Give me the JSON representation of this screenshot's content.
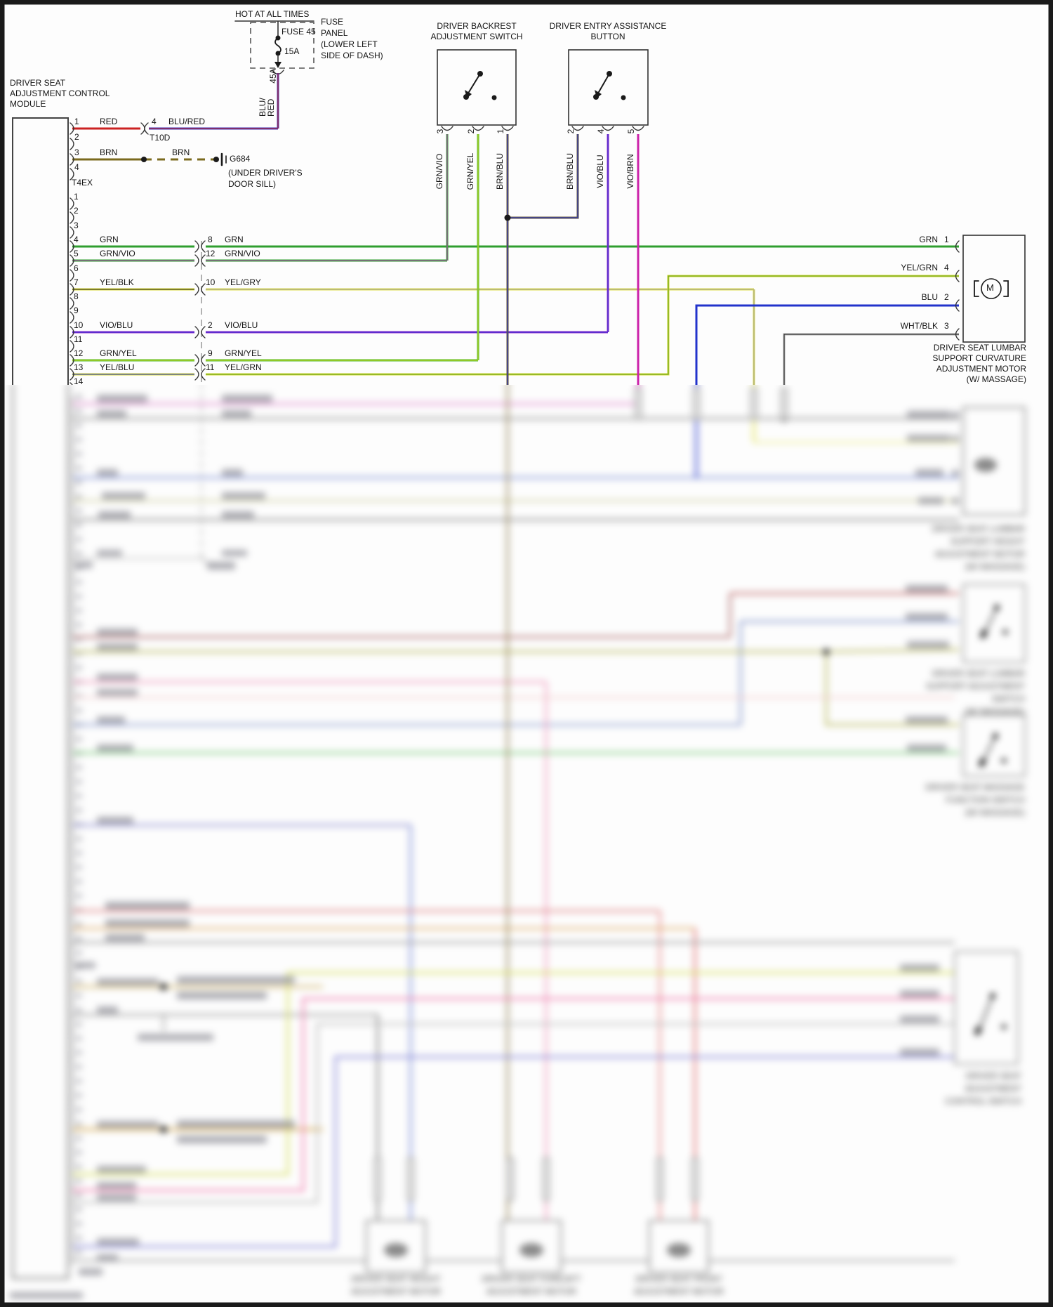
{
  "palette": {
    "red": "#cc2222",
    "blu_red": "#4936b8",
    "blu_red_stripe": "#b22222",
    "brn": "#7a6a1e",
    "grn": "#2f9e2f",
    "vio": "#bb44bb",
    "yel": "#d8d832",
    "blk": "#222222",
    "gry": "#999999",
    "yel_gry": "#e0e050",
    "vio_blu": "#9a2ad0",
    "blu": "#2233cc",
    "grn_yel": "#46b81e",
    "yel_grn": "#d6da30",
    "grn_stripe": "#559922",
    "brn_blu": "#6b5a3a",
    "vio_brn": "#cc22aa",
    "wht_blk": "#aaaaaa",
    "line": "#333333"
  },
  "fuse": {
    "hot_label": "HOT AT ALL TIMES",
    "name": "FUSE 45",
    "amps": "15A",
    "panel_lines": [
      "FUSE",
      "PANEL",
      "(LOWER LEFT",
      "SIDE OF DASH)"
    ],
    "wire_line1": "BLU/",
    "wire_line2": "RED",
    "circuit": "45A"
  },
  "module": {
    "title": [
      "DRIVER SEAT",
      "ADJUSTMENT CONTROL",
      "MODULE"
    ],
    "c1_pins": [
      "1",
      "2",
      "3",
      "4"
    ],
    "c1_label": "T4EX",
    "c2_pins": [
      "1",
      "2",
      "3",
      "4",
      "5",
      "6",
      "7",
      "8",
      "9",
      "10",
      "11",
      "12",
      "13",
      "14"
    ]
  },
  "t10d": {
    "pin": "4",
    "wire": "BLU/RED",
    "label": "T10D",
    "left_wire": "RED"
  },
  "ground": {
    "wire": "BRN",
    "wire2": "BRN",
    "name": "G684",
    "note": [
      "(UNDER DRIVER'S",
      "DOOR SILL)"
    ]
  },
  "rows": [
    {
      "left": "GRN",
      "rnum": "8",
      "right": "GRN"
    },
    {
      "left": "GRN/VIO",
      "rnum": "12",
      "right": "GRN/VIO"
    },
    {
      "left": "YEL/BLK",
      "rnum": "10",
      "right": "YEL/GRY"
    },
    {
      "left": "VIO/BLU",
      "rnum": "2",
      "right": "VIO/BLU"
    },
    {
      "left": "GRN/YEL",
      "rnum": "9",
      "right": "GRN/YEL"
    },
    {
      "left": "YEL/BLU",
      "rnum": "11",
      "right": "YEL/GRN"
    }
  ],
  "backrest_switch": {
    "title": [
      "DRIVER BACKREST",
      "ADJUSTMENT SWITCH"
    ],
    "pins": [
      {
        "n": "3",
        "wire": "GRN/VIO"
      },
      {
        "n": "2",
        "wire": "GRN/YEL"
      },
      {
        "n": "1",
        "wire": "BRN/BLU"
      }
    ]
  },
  "entry_button": {
    "title": [
      "DRIVER ENTRY ASSISTANCE",
      "BUTTON"
    ],
    "pins": [
      {
        "n": "2",
        "wire": "BRN/BLU"
      },
      {
        "n": "4",
        "wire": "VIO/BLU"
      },
      {
        "n": "5",
        "wire": "VIO/BRN"
      }
    ]
  },
  "lumbar_motor": {
    "symbol": "M",
    "pins": [
      {
        "n": "1",
        "wire": "GRN"
      },
      {
        "n": "4",
        "wire": "YEL/GRN"
      },
      {
        "n": "2",
        "wire": "BLU"
      },
      {
        "n": "3",
        "wire": "WHT/BLK"
      }
    ],
    "title": [
      "DRIVER SEAT LUMBAR",
      "SUPPORT CURVATURE",
      "ADJUSTMENT MOTOR",
      "(W/ MASSAGE)"
    ]
  },
  "blurred": {
    "note": "lower portion of drawing is out of focus in source",
    "m2": [
      "DRIVER SEAT LUMBAR",
      "SUPPORT HEIGHT",
      "ADJUSTMENT MOTOR",
      "(W/ MASSAGE)"
    ],
    "sw1": [
      "DRIVER SEAT LUMBAR",
      "SUPPORT ADJUSTMENT",
      "SWITCH",
      "(W/ MASSAGE)"
    ],
    "sw2": [
      "DRIVER SEAT MASSAGE",
      "FUNCTION SWITCH",
      "(W/ MASSAGE)"
    ],
    "sw3": [
      "DRIVER SEAT",
      "ADJUSTMENT",
      "CONTROL SWITCH"
    ],
    "bm1": [
      "DRIVER SEAT HEIGHT",
      "ADJUSTMENT MOTOR"
    ],
    "bm2": [
      "DRIVER SEAT FORE/AFT",
      "ADJUSTMENT MOTOR"
    ],
    "bm3": [
      "DRIVER SEAT FRONT",
      "ADJUSTMENT MOTOR"
    ]
  }
}
